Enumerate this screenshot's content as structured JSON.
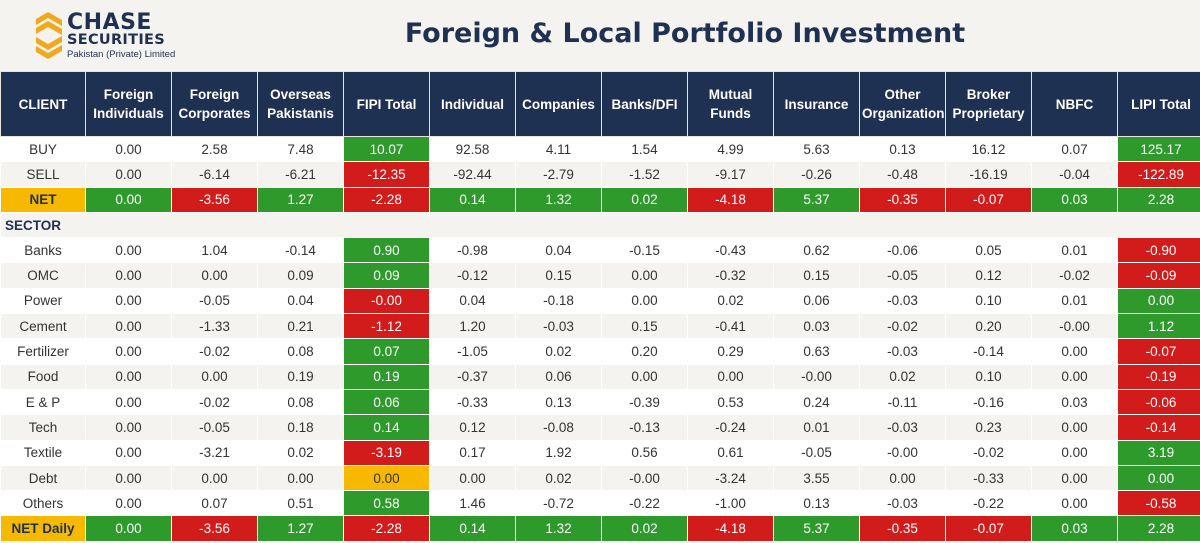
{
  "logo": {
    "line1": "CHASE",
    "line2": "SECURITIES",
    "line3": "Pakistan (Private) Limited",
    "icon": "chase-stripes-logo-icon"
  },
  "title": "Foreign & Local Portfolio Investment",
  "colors": {
    "header_bg": "#1f3153",
    "positive": "#2f9a2c",
    "negative": "#d21b1b",
    "neutral": "#f7b900"
  },
  "headers": [
    "CLIENT",
    "Foreign Individuals",
    "Foreign Corporates",
    "Overseas Pakistanis",
    "FIPI Total",
    "Individual",
    "Companies",
    "Banks/DFI",
    "Mutual Funds",
    "Insurance",
    "Other Organization",
    "Broker Proprietary",
    "NBFC",
    "LIPI Total"
  ],
  "client_rows": [
    {
      "label": "BUY",
      "values": [
        "0.00",
        "2.58",
        "7.48",
        "10.07",
        "92.58",
        "4.11",
        "1.54",
        "4.99",
        "5.63",
        "0.13",
        "16.12",
        "0.07",
        "125.17"
      ]
    },
    {
      "label": "SELL",
      "values": [
        "0.00",
        "-6.14",
        "-6.21",
        "-12.35",
        "-92.44",
        "-2.79",
        "-1.52",
        "-9.17",
        "-0.26",
        "-0.48",
        "-16.19",
        "-0.04",
        "-122.89"
      ]
    },
    {
      "label": "NET",
      "values": [
        "0.00",
        "-3.56",
        "1.27",
        "-2.28",
        "0.14",
        "1.32",
        "0.02",
        "-4.18",
        "5.37",
        "-0.35",
        "-0.07",
        "0.03",
        "2.28"
      ]
    }
  ],
  "sector_label": "SECTOR",
  "sector_rows": [
    {
      "label": "Banks",
      "values": [
        "0.00",
        "1.04",
        "-0.14",
        "0.90",
        "-0.98",
        "0.04",
        "-0.15",
        "-0.43",
        "0.62",
        "-0.06",
        "0.05",
        "0.01",
        "-0.90"
      ]
    },
    {
      "label": "OMC",
      "values": [
        "0.00",
        "0.00",
        "0.09",
        "0.09",
        "-0.12",
        "0.15",
        "0.00",
        "-0.32",
        "0.15",
        "-0.05",
        "0.12",
        "-0.02",
        "-0.09"
      ]
    },
    {
      "label": "Power",
      "values": [
        "0.00",
        "-0.05",
        "0.04",
        "-0.00",
        "0.04",
        "-0.18",
        "0.00",
        "0.02",
        "0.06",
        "-0.03",
        "0.10",
        "0.01",
        "0.00"
      ]
    },
    {
      "label": "Cement",
      "values": [
        "0.00",
        "-1.33",
        "0.21",
        "-1.12",
        "1.20",
        "-0.03",
        "0.15",
        "-0.41",
        "0.03",
        "-0.02",
        "0.20",
        "-0.00",
        "1.12"
      ]
    },
    {
      "label": "Fertilizer",
      "values": [
        "0.00",
        "-0.02",
        "0.08",
        "0.07",
        "-1.05",
        "0.02",
        "0.20",
        "0.29",
        "0.63",
        "-0.03",
        "-0.14",
        "0.00",
        "-0.07"
      ]
    },
    {
      "label": "Food",
      "values": [
        "0.00",
        "0.00",
        "0.19",
        "0.19",
        "-0.37",
        "0.06",
        "0.00",
        "0.00",
        "-0.00",
        "0.02",
        "0.10",
        "0.00",
        "-0.19"
      ]
    },
    {
      "label": "E & P",
      "values": [
        "0.00",
        "-0.02",
        "0.08",
        "0.06",
        "-0.33",
        "0.13",
        "-0.39",
        "0.53",
        "0.24",
        "-0.11",
        "-0.16",
        "0.03",
        "-0.06"
      ]
    },
    {
      "label": "Tech",
      "values": [
        "0.00",
        "-0.05",
        "0.18",
        "0.14",
        "0.12",
        "-0.08",
        "-0.13",
        "-0.24",
        "0.01",
        "-0.03",
        "0.23",
        "0.00",
        "-0.14"
      ]
    },
    {
      "label": "Textile",
      "values": [
        "0.00",
        "-3.21",
        "0.02",
        "-3.19",
        "0.17",
        "1.92",
        "0.56",
        "0.61",
        "-0.05",
        "-0.00",
        "-0.02",
        "0.00",
        "3.19"
      ]
    },
    {
      "label": "Debt",
      "values": [
        "0.00",
        "0.00",
        "0.00",
        "0.00",
        "0.00",
        "0.02",
        "-0.00",
        "-3.24",
        "3.55",
        "0.00",
        "-0.33",
        "0.00",
        "0.00"
      ]
    },
    {
      "label": "Others",
      "values": [
        "0.00",
        "0.07",
        "0.51",
        "0.58",
        "1.46",
        "-0.72",
        "-0.22",
        "-1.00",
        "0.13",
        "-0.03",
        "-0.22",
        "0.00",
        "-0.58"
      ]
    }
  ],
  "net_daily": {
    "label": "NET Daily",
    "values": [
      "0.00",
      "-3.56",
      "1.27",
      "-2.28",
      "0.14",
      "1.32",
      "0.02",
      "-4.18",
      "5.37",
      "-0.35",
      "-0.07",
      "0.03",
      "2.28"
    ]
  }
}
